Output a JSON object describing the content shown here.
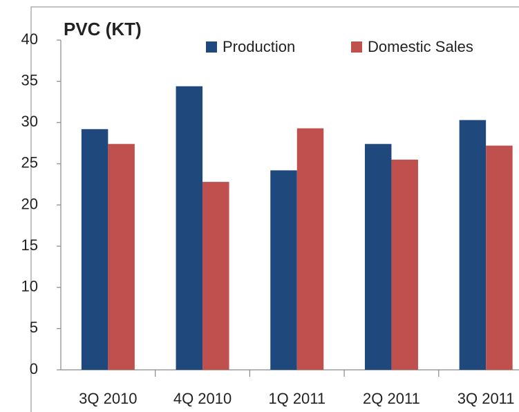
{
  "chart_data": {
    "type": "bar",
    "title": "PVC (KT)",
    "categories": [
      "3Q 2010",
      "4Q 2010",
      "1Q 2011",
      "2Q 2011",
      "3Q 2011"
    ],
    "series": [
      {
        "name": "Production",
        "color": "#1f497d",
        "values": [
          29.2,
          34.4,
          24.2,
          27.4,
          30.3
        ]
      },
      {
        "name": "Domestic Sales",
        "color": "#c0504d",
        "values": [
          27.4,
          22.8,
          29.3,
          25.5,
          27.2
        ]
      }
    ],
    "ylim": [
      0,
      40
    ],
    "yticks": [
      0,
      5,
      10,
      15,
      20,
      25,
      30,
      35,
      40
    ],
    "grid": false,
    "legend": "top"
  }
}
